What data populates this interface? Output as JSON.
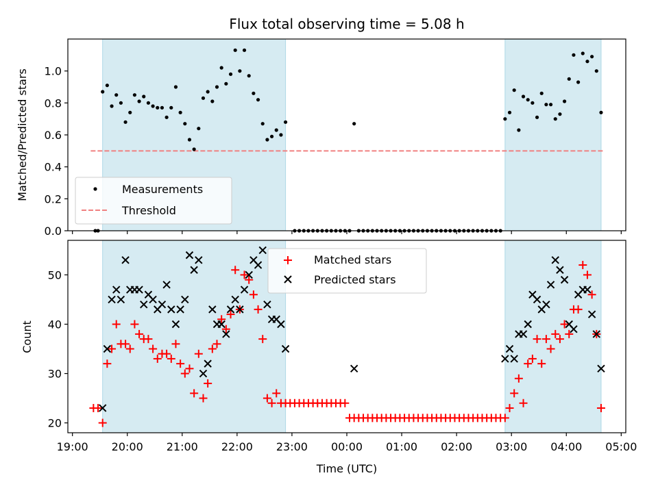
{
  "chart_data": [
    {
      "type": "scatter",
      "title": "Flux total observing time = 5.08 h",
      "ylabel": "Matched/Predicted stars",
      "xlabel": "",
      "xlim": [
        "18:55",
        "05:05"
      ],
      "ylim": [
        0,
        1.2
      ],
      "yticks": [
        0.0,
        0.2,
        0.4,
        0.6,
        0.8,
        1.0
      ],
      "ytick_labels": [
        "0.0",
        "0.2",
        "0.4",
        "0.6",
        "0.8",
        "1.0"
      ],
      "grid": false,
      "legend": "lower-left",
      "shaded_intervals": [
        [
          "19:33",
          "22:53"
        ],
        [
          "02:53",
          "04:38"
        ]
      ],
      "threshold": {
        "name": "Threshold",
        "y": 0.5,
        "x_range": [
          "19:20",
          "04:40"
        ],
        "color": "#f08080",
        "style": "dashed"
      },
      "series": [
        {
          "name": "Measurements",
          "marker": "dot",
          "color": "#000000",
          "x": [
            "19:25",
            "19:28",
            "19:33",
            "19:38",
            "19:43",
            "19:48",
            "19:53",
            "19:58",
            "20:03",
            "20:08",
            "20:13",
            "20:18",
            "20:23",
            "20:28",
            "20:33",
            "20:38",
            "20:43",
            "20:48",
            "20:53",
            "20:58",
            "21:03",
            "21:08",
            "21:13",
            "21:18",
            "21:23",
            "21:28",
            "21:33",
            "21:38",
            "21:43",
            "21:48",
            "21:53",
            "21:58",
            "22:03",
            "22:08",
            "22:13",
            "22:18",
            "22:23",
            "22:28",
            "22:33",
            "22:38",
            "22:43",
            "22:48",
            "22:53",
            "23:03",
            "23:08",
            "23:13",
            "23:18",
            "23:23",
            "23:28",
            "23:33",
            "23:38",
            "23:43",
            "23:48",
            "23:53",
            "23:58",
            "00:03",
            "00:08",
            "00:13",
            "00:18",
            "00:23",
            "00:28",
            "00:33",
            "00:38",
            "00:43",
            "00:48",
            "00:53",
            "00:58",
            "01:03",
            "01:08",
            "01:13",
            "01:18",
            "01:23",
            "01:28",
            "01:33",
            "01:38",
            "01:43",
            "01:48",
            "01:53",
            "01:58",
            "02:03",
            "02:08",
            "02:13",
            "02:18",
            "02:23",
            "02:28",
            "02:33",
            "02:38",
            "02:43",
            "02:48",
            "02:53",
            "02:58",
            "03:03",
            "03:08",
            "03:13",
            "03:18",
            "03:23",
            "03:28",
            "03:33",
            "03:38",
            "03:43",
            "03:48",
            "03:53",
            "03:58",
            "04:03",
            "04:08",
            "04:13",
            "04:18",
            "04:23",
            "04:28",
            "04:33",
            "04:38"
          ],
          "y": [
            0.0,
            0.0,
            0.87,
            0.91,
            0.78,
            0.85,
            0.8,
            0.68,
            0.74,
            0.85,
            0.81,
            0.84,
            0.8,
            0.78,
            0.77,
            0.77,
            0.71,
            0.77,
            0.9,
            0.74,
            0.67,
            0.57,
            0.51,
            0.64,
            0.83,
            0.87,
            0.81,
            0.9,
            1.02,
            0.92,
            0.98,
            1.13,
            1.0,
            1.13,
            0.97,
            0.86,
            0.82,
            0.67,
            0.57,
            0.59,
            0.63,
            0.6,
            0.68,
            0.0,
            0.0,
            0.0,
            0.0,
            0.0,
            0.0,
            0.0,
            0.0,
            0.0,
            0.0,
            0.0,
            0.0,
            0.0,
            0.67,
            0.0,
            0.0,
            0.0,
            0.0,
            0.0,
            0.0,
            0.0,
            0.0,
            0.0,
            0.0,
            0.0,
            0.0,
            0.0,
            0.0,
            0.0,
            0.0,
            0.0,
            0.0,
            0.0,
            0.0,
            0.0,
            0.0,
            0.0,
            0.0,
            0.0,
            0.0,
            0.0,
            0.0,
            0.0,
            0.0,
            0.0,
            0.0,
            0.7,
            0.74,
            0.88,
            0.63,
            0.84,
            0.82,
            0.8,
            0.71,
            0.86,
            0.79,
            0.79,
            0.7,
            0.73,
            0.81,
            0.95,
            1.1,
            0.93,
            1.11,
            1.06,
            1.09,
            1.0,
            0.74
          ]
        }
      ]
    },
    {
      "type": "scatter",
      "title": "",
      "ylabel": "Count",
      "xlabel": "Time (UTC)",
      "xlim": [
        "18:55",
        "05:05"
      ],
      "ylim": [
        18,
        57
      ],
      "yticks": [
        20,
        30,
        40,
        50
      ],
      "ytick_labels": [
        "20",
        "30",
        "40",
        "50"
      ],
      "xticks": [
        "19:00",
        "20:00",
        "21:00",
        "22:00",
        "23:00",
        "00:00",
        "01:00",
        "02:00",
        "03:00",
        "04:00",
        "05:00"
      ],
      "grid": false,
      "legend": "upper-center",
      "shaded_intervals": [
        [
          "19:33",
          "22:53"
        ],
        [
          "02:53",
          "04:38"
        ]
      ],
      "series": [
        {
          "name": "Matched stars",
          "marker": "plus",
          "color": "#ff0000",
          "x": [
            "19:23",
            "19:28",
            "19:33",
            "19:38",
            "19:43",
            "19:48",
            "19:53",
            "19:58",
            "20:03",
            "20:08",
            "20:13",
            "20:18",
            "20:23",
            "20:28",
            "20:33",
            "20:38",
            "20:43",
            "20:48",
            "20:53",
            "20:58",
            "21:03",
            "21:08",
            "21:13",
            "21:18",
            "21:23",
            "21:28",
            "21:33",
            "21:38",
            "21:43",
            "21:48",
            "21:53",
            "21:58",
            "22:03",
            "22:08",
            "22:13",
            "22:18",
            "22:23",
            "22:28",
            "22:33",
            "22:38",
            "22:43",
            "22:48",
            "22:53",
            "22:58",
            "23:03",
            "23:08",
            "23:13",
            "23:18",
            "23:23",
            "23:28",
            "23:33",
            "23:38",
            "23:43",
            "23:48",
            "23:53",
            "23:58",
            "00:03",
            "00:08",
            "00:13",
            "00:18",
            "00:23",
            "00:28",
            "00:33",
            "00:38",
            "00:43",
            "00:48",
            "00:53",
            "00:58",
            "01:03",
            "01:08",
            "01:13",
            "01:18",
            "01:23",
            "01:28",
            "01:33",
            "01:38",
            "01:43",
            "01:48",
            "01:53",
            "01:58",
            "02:03",
            "02:08",
            "02:13",
            "02:18",
            "02:23",
            "02:28",
            "02:33",
            "02:38",
            "02:43",
            "02:48",
            "02:53",
            "02:58",
            "03:03",
            "03:08",
            "03:13",
            "03:18",
            "03:23",
            "03:28",
            "03:33",
            "03:38",
            "03:43",
            "03:48",
            "03:53",
            "03:58",
            "04:03",
            "04:08",
            "04:13",
            "04:18",
            "04:23",
            "04:28",
            "04:33",
            "04:38"
          ],
          "y": [
            23,
            23,
            20,
            32,
            35,
            40,
            36,
            36,
            35,
            40,
            38,
            37,
            37,
            35,
            33,
            34,
            34,
            33,
            36,
            32,
            30,
            31,
            26,
            34,
            25,
            28,
            35,
            36,
            41,
            39,
            42,
            51,
            43,
            50,
            49,
            46,
            43,
            37,
            25,
            24,
            26,
            24,
            24,
            24,
            24,
            24,
            24,
            24,
            24,
            24,
            24,
            24,
            24,
            24,
            24,
            24,
            21,
            21,
            21,
            21,
            21,
            21,
            21,
            21,
            21,
            21,
            21,
            21,
            21,
            21,
            21,
            21,
            21,
            21,
            21,
            21,
            21,
            21,
            21,
            21,
            21,
            21,
            21,
            21,
            21,
            21,
            21,
            21,
            21,
            21,
            21,
            23,
            26,
            29,
            24,
            32,
            33,
            37,
            32,
            37,
            35,
            38,
            37,
            40,
            38,
            43,
            43,
            52,
            50,
            46,
            38,
            23
          ]
        },
        {
          "name": "Predicted stars",
          "marker": "x",
          "color": "#000000",
          "x": [
            "19:33",
            "19:38",
            "19:43",
            "19:48",
            "19:53",
            "19:58",
            "20:03",
            "20:08",
            "20:13",
            "20:18",
            "20:23",
            "20:28",
            "20:33",
            "20:38",
            "20:43",
            "20:48",
            "20:53",
            "20:58",
            "21:03",
            "21:08",
            "21:13",
            "21:18",
            "21:23",
            "21:28",
            "21:33",
            "21:38",
            "21:43",
            "21:48",
            "21:53",
            "21:58",
            "22:03",
            "22:08",
            "22:13",
            "22:18",
            "22:23",
            "22:28",
            "22:33",
            "22:38",
            "22:43",
            "22:48",
            "22:53",
            "00:08",
            "02:53",
            "02:58",
            "03:03",
            "03:08",
            "03:13",
            "03:18",
            "03:23",
            "03:28",
            "03:33",
            "03:38",
            "03:43",
            "03:48",
            "03:53",
            "03:58",
            "04:03",
            "04:08",
            "04:13",
            "04:18",
            "04:23",
            "04:28",
            "04:33",
            "04:38"
          ],
          "y": [
            23,
            35,
            45,
            47,
            45,
            53,
            47,
            47,
            47,
            44,
            46,
            45,
            43,
            44,
            48,
            43,
            40,
            43,
            45,
            54,
            51,
            53,
            30,
            32,
            43,
            40,
            40,
            38,
            43,
            45,
            43,
            47,
            50,
            53,
            52,
            55,
            44,
            41,
            41,
            40,
            35,
            31,
            33,
            35,
            33,
            38,
            38,
            40,
            46,
            45,
            43,
            44,
            48,
            53,
            51,
            49,
            40,
            39,
            46,
            47,
            47,
            42,
            38,
            31
          ]
        }
      ]
    }
  ]
}
